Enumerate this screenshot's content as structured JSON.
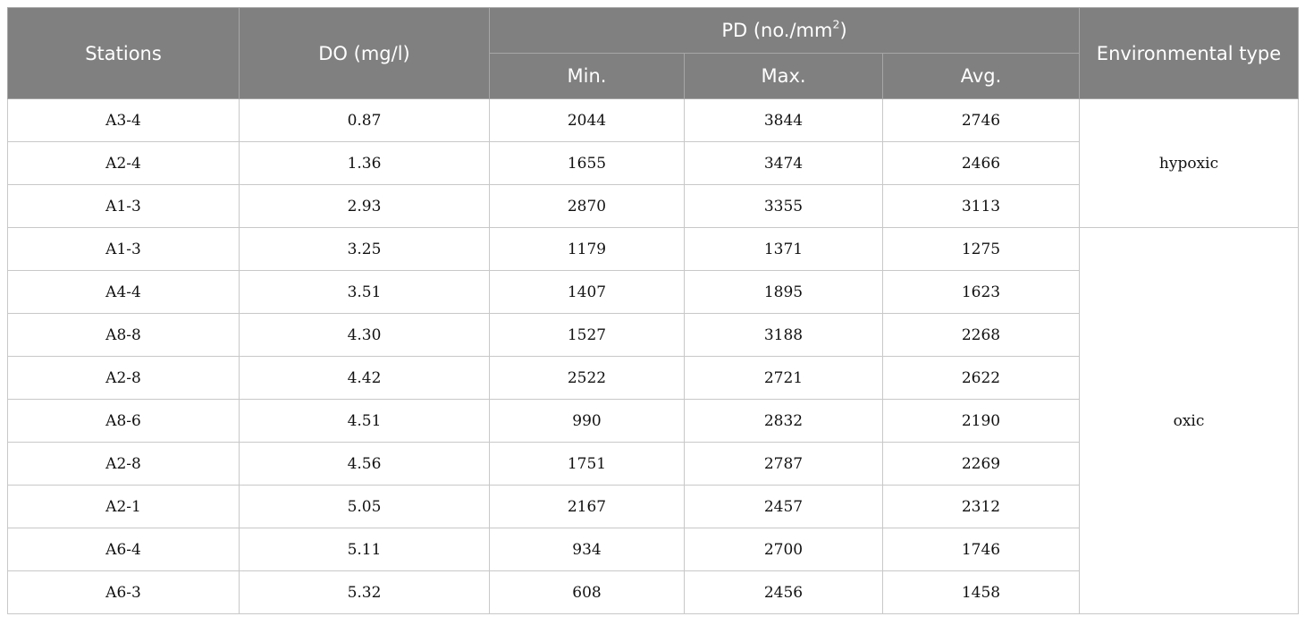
{
  "table": {
    "headers": {
      "stations": "Stations",
      "do": "DO (mg/l)",
      "pd_prefix": "PD (no./mm",
      "pd_sup": "2",
      "pd_suffix": ")",
      "min": "Min.",
      "max": "Max.",
      "avg": "Avg.",
      "env": "Environmental type"
    },
    "rows": [
      {
        "station": "A3-4",
        "do": "0.87",
        "min": "2044",
        "max": "3844",
        "avg": "2746"
      },
      {
        "station": "A2-4",
        "do": "1.36",
        "min": "1655",
        "max": "3474",
        "avg": "2466"
      },
      {
        "station": "A1-3",
        "do": "2.93",
        "min": "2870",
        "max": "3355",
        "avg": "3113"
      },
      {
        "station": "A1-3",
        "do": "3.25",
        "min": "1179",
        "max": "1371",
        "avg": "1275"
      },
      {
        "station": "A4-4",
        "do": "3.51",
        "min": "1407",
        "max": "1895",
        "avg": "1623"
      },
      {
        "station": "A8-8",
        "do": "4.30",
        "min": "1527",
        "max": "3188",
        "avg": "2268"
      },
      {
        "station": "A2-8",
        "do": "4.42",
        "min": "2522",
        "max": "2721",
        "avg": "2622"
      },
      {
        "station": "A8-6",
        "do": "4.51",
        "min": "990",
        "max": "2832",
        "avg": "2190"
      },
      {
        "station": "A2-8",
        "do": "4.56",
        "min": "1751",
        "max": "2787",
        "avg": "2269"
      },
      {
        "station": "A2-1",
        "do": "5.05",
        "min": "2167",
        "max": "2457",
        "avg": "2312"
      },
      {
        "station": "A6-4",
        "do": "5.11",
        "min": "934",
        "max": "2700",
        "avg": "1746"
      },
      {
        "station": "A6-3",
        "do": "5.32",
        "min": "608",
        "max": "2456",
        "avg": "1458"
      }
    ],
    "env_groups": [
      {
        "label": "hypoxic",
        "span": 3
      },
      {
        "label": "oxic",
        "span": 9
      }
    ]
  },
  "colors": {
    "header_bg": "#808080",
    "header_text": "#ffffff",
    "border": "#c8c8c8"
  }
}
